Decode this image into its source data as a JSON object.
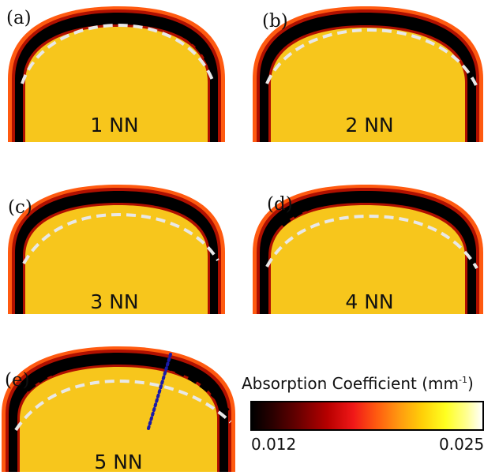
{
  "panels": [
    {
      "id": "a",
      "letter": "(a)",
      "caption": "1 NN"
    },
    {
      "id": "b",
      "letter": "(b)",
      "caption": "2 NN"
    },
    {
      "id": "c",
      "letter": "(c)",
      "caption": "3 NN"
    },
    {
      "id": "d",
      "letter": "(d)",
      "caption": "4 NN"
    },
    {
      "id": "e",
      "letter": "(e)",
      "caption": "5 NN"
    }
  ],
  "colorbar": {
    "title": "Absorption Coefficient (mm",
    "title_sup": "-1",
    "title_close": ")",
    "min_label": "0.012",
    "max_label": "0.025"
  },
  "colors": {
    "fill": "#f7c61c",
    "ring": "#000000",
    "ring_edge": "#ff5a10",
    "inner_dash": "#e8e8e8",
    "line_profile": "#1a1aa8"
  }
}
